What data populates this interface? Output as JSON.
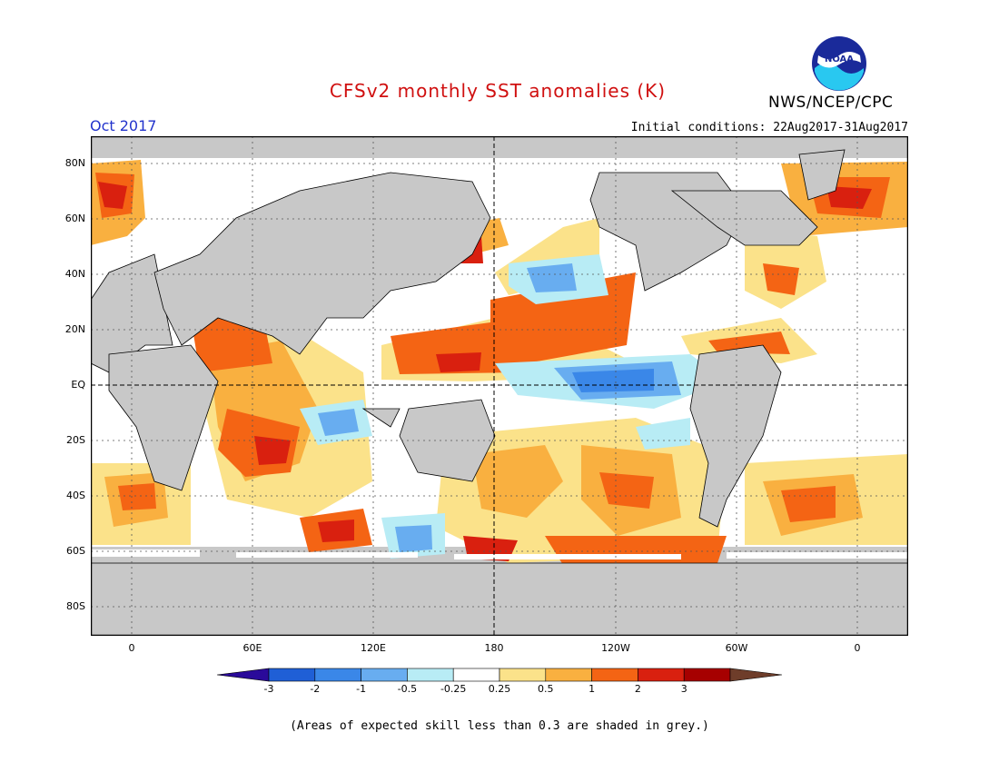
{
  "title": "CFSv2 monthly SST anomalies (K)",
  "organization": "NWS/NCEP/CPC",
  "logo_text": "NOAA",
  "forecast_month": "Oct 2017",
  "initial_conditions": "Initial conditions: 22Aug2017-31Aug2017",
  "lat_labels": [
    "80N",
    "60N",
    "40N",
    "20N",
    "EQ",
    "20S",
    "40S",
    "60S",
    "80S"
  ],
  "lon_labels": [
    "0",
    "60E",
    "120E",
    "180",
    "120W",
    "60W",
    "0"
  ],
  "colorbar": {
    "labels": [
      "-3",
      "-2",
      "-1",
      "-0.5",
      "-0.25",
      "0.25",
      "0.5",
      "1",
      "2",
      "3"
    ],
    "colors": [
      "#2a0a9a",
      "#1f5fd6",
      "#3a87e8",
      "#68adf0",
      "#b8ecf5",
      "#ffffff",
      "#fbe28a",
      "#f9b040",
      "#f46414",
      "#d9200f",
      "#a60000",
      "#6e3d2a"
    ]
  },
  "footnote": "(Areas of expected skill less than 0.3 are shaded in grey.)",
  "colors": {
    "title": "#d01010",
    "month": "#2233cc",
    "land": "#c8c8c8",
    "low_skill": "#c8c8c8"
  }
}
